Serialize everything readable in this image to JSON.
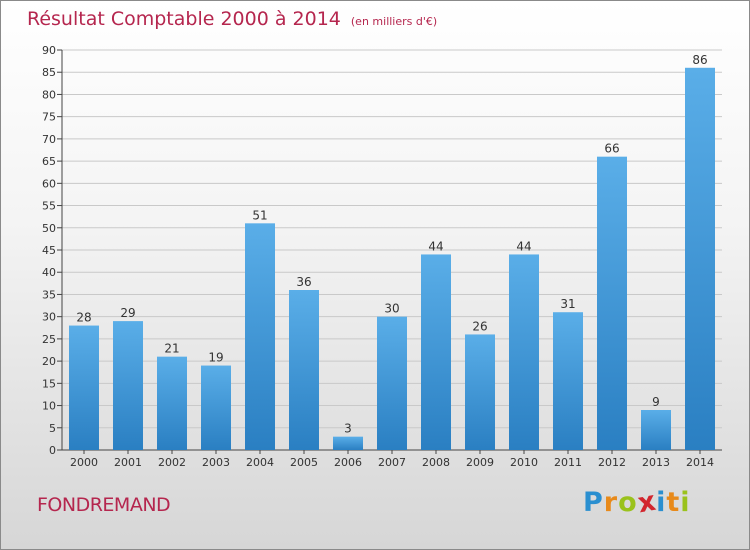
{
  "chart_data": {
    "type": "bar",
    "title": "Résultat Comptable 2000 à 2014",
    "subtitle": "(en milliers d'€)",
    "categories": [
      "2000",
      "2001",
      "2002",
      "2003",
      "2004",
      "2005",
      "2006",
      "2007",
      "2008",
      "2009",
      "2010",
      "2011",
      "2012",
      "2013",
      "2014"
    ],
    "values": [
      28,
      29,
      21,
      19,
      51,
      36,
      3,
      30,
      44,
      26,
      44,
      31,
      66,
      9,
      86
    ],
    "ylim": [
      0,
      90
    ],
    "yticks": [
      0,
      5,
      10,
      15,
      20,
      25,
      30,
      35,
      40,
      45,
      50,
      55,
      60,
      65,
      70,
      75,
      80,
      85,
      90
    ],
    "grid": true,
    "xlabel": "",
    "ylabel": "",
    "bar_color": "#3a95da"
  },
  "commune": "FONDREMAND",
  "logo": {
    "letters": [
      "P",
      "r",
      "o",
      "x",
      "i",
      "t",
      "i"
    ],
    "colors": [
      "#2a8fd0",
      "#e88a1a",
      "#9ac21c",
      "#d2262e",
      "#2a8fd0",
      "#e88a1a",
      "#9ac21c"
    ]
  }
}
